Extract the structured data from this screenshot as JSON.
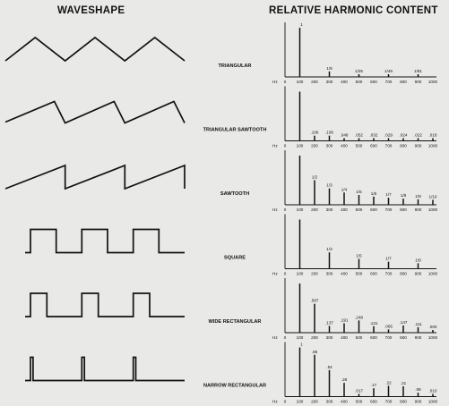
{
  "headers": {
    "waveshape": "WAVESHAPE",
    "harmonic_content": "RELATIVE HARMONIC CONTENT"
  },
  "axis": {
    "unit": "Hz",
    "ticks": [
      "0",
      "100",
      "200",
      "300",
      "400",
      "500",
      "600",
      "700",
      "800",
      "900",
      "1000"
    ]
  },
  "rows": [
    {
      "name": "TRIANGULAR",
      "wave": "triangle",
      "harmonics": [
        {
          "freq": 100,
          "amp": 1,
          "label": "1"
        },
        {
          "freq": 300,
          "amp": 0.111,
          "label": "1/9"
        },
        {
          "freq": 500,
          "amp": 0.04,
          "label": "1/25"
        },
        {
          "freq": 700,
          "amp": 0.02,
          "label": "1/49"
        },
        {
          "freq": 900,
          "amp": 0.012,
          "label": "1/81"
        }
      ]
    },
    {
      "name": "TRIANGULAR SAWTOOTH",
      "wave": "triangular-sawtooth",
      "harmonics": [
        {
          "freq": 100,
          "amp": 1,
          "label": ""
        },
        {
          "freq": 200,
          "amp": 0.106,
          "label": ".106"
        },
        {
          "freq": 300,
          "amp": 0.106,
          "label": ".106"
        },
        {
          "freq": 400,
          "amp": 0.048,
          "label": ".048"
        },
        {
          "freq": 500,
          "amp": 0.052,
          "label": ".052"
        },
        {
          "freq": 600,
          "amp": 0.032,
          "label": ".032"
        },
        {
          "freq": 700,
          "amp": 0.029,
          "label": ".029"
        },
        {
          "freq": 800,
          "amp": 0.024,
          "label": ".024"
        },
        {
          "freq": 900,
          "amp": 0.022,
          "label": ".022"
        },
        {
          "freq": 1000,
          "amp": 0.018,
          "label": ".018"
        }
      ]
    },
    {
      "name": "SAWTOOTH",
      "wave": "sawtooth",
      "harmonics": [
        {
          "freq": 100,
          "amp": 1,
          "label": ""
        },
        {
          "freq": 200,
          "amp": 0.5,
          "label": "1/2"
        },
        {
          "freq": 300,
          "amp": 0.333,
          "label": "1/3"
        },
        {
          "freq": 400,
          "amp": 0.25,
          "label": "1/4"
        },
        {
          "freq": 500,
          "amp": 0.2,
          "label": "1/5"
        },
        {
          "freq": 600,
          "amp": 0.167,
          "label": "1/6"
        },
        {
          "freq": 700,
          "amp": 0.143,
          "label": "1/7"
        },
        {
          "freq": 800,
          "amp": 0.125,
          "label": "1/8"
        },
        {
          "freq": 900,
          "amp": 0.111,
          "label": "1/9"
        },
        {
          "freq": 1000,
          "amp": 0.1,
          "label": "1/10"
        }
      ]
    },
    {
      "name": "SQUARE",
      "wave": "square",
      "harmonics": [
        {
          "freq": 100,
          "amp": 1,
          "label": ""
        },
        {
          "freq": 300,
          "amp": 0.333,
          "label": "1/3"
        },
        {
          "freq": 500,
          "amp": 0.2,
          "label": "1/5"
        },
        {
          "freq": 700,
          "amp": 0.143,
          "label": "1/7"
        },
        {
          "freq": 900,
          "amp": 0.111,
          "label": "1/9"
        }
      ]
    },
    {
      "name": "WIDE RECTANGULAR",
      "wave": "wide-rectangular",
      "harmonics": [
        {
          "freq": 100,
          "amp": 1,
          "label": ""
        },
        {
          "freq": 200,
          "amp": 0.587,
          "label": ".587"
        },
        {
          "freq": 300,
          "amp": 0.137,
          "label": ".137"
        },
        {
          "freq": 400,
          "amp": 0.191,
          "label": ".191"
        },
        {
          "freq": 500,
          "amp": 0.248,
          "label": ".248"
        },
        {
          "freq": 600,
          "amp": 0.131,
          "label": ".131"
        },
        {
          "freq": 700,
          "amp": 0.065,
          "label": ".065"
        },
        {
          "freq": 800,
          "amp": 0.147,
          "label": ".147"
        },
        {
          "freq": 900,
          "amp": 0.111,
          "label": ".111"
        },
        {
          "freq": 1000,
          "amp": 0.0,
          "label": ".000"
        }
      ]
    },
    {
      "name": "NARROW RECTANGULAR",
      "wave": "narrow-rectangular",
      "harmonics": [
        {
          "freq": 100,
          "amp": 1,
          "label": "1"
        },
        {
          "freq": 200,
          "amp": 0.85,
          "label": ".85"
        },
        {
          "freq": 300,
          "amp": 0.54,
          "label": ".54"
        },
        {
          "freq": 400,
          "amp": 0.28,
          "label": ".28"
        },
        {
          "freq": 500,
          "amp": 0.017,
          "label": ".017"
        },
        {
          "freq": 600,
          "amp": 0.17,
          "label": ".17"
        },
        {
          "freq": 700,
          "amp": 0.22,
          "label": ".22"
        },
        {
          "freq": 800,
          "amp": 0.21,
          "label": ".21"
        },
        {
          "freq": 900,
          "amp": 0.08,
          "label": ".08"
        },
        {
          "freq": 1000,
          "amp": 0.01,
          "label": ".010"
        }
      ]
    }
  ]
}
